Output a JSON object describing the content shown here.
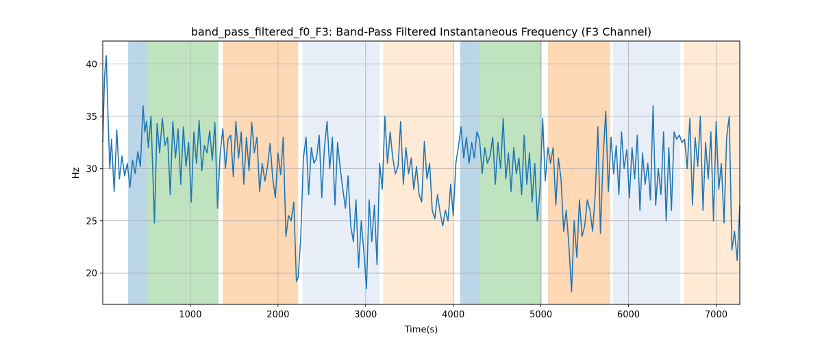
{
  "chart_data": {
    "type": "line",
    "title": "band_pass_filtered_f0_F3: Band-Pass Filtered Instantaneous Frequency (F3 Channel)",
    "xlabel": "Time(s)",
    "ylabel": "Hz",
    "xlim": [
      0,
      7270
    ],
    "ylim": [
      17,
      42.2
    ],
    "xticks": [
      1000,
      2000,
      3000,
      4000,
      5000,
      6000,
      7000
    ],
    "yticks": [
      20,
      25,
      30,
      35,
      40
    ],
    "grid": true,
    "line_color": "#1f77b4",
    "bands": [
      {
        "start": 290,
        "end": 500,
        "color": "#1f77b4",
        "alpha": 0.3
      },
      {
        "start": 500,
        "end": 1320,
        "color": "#2ca02c",
        "alpha": 0.3
      },
      {
        "start": 1370,
        "end": 2230,
        "color": "#ff7f0e",
        "alpha": 0.3
      },
      {
        "start": 2280,
        "end": 3160,
        "color": "#aec7e8",
        "alpha": 0.3
      },
      {
        "start": 3200,
        "end": 4010,
        "color": "#ffbb78",
        "alpha": 0.3
      },
      {
        "start": 4080,
        "end": 4300,
        "color": "#1f77b4",
        "alpha": 0.3
      },
      {
        "start": 4300,
        "end": 5010,
        "color": "#2ca02c",
        "alpha": 0.3
      },
      {
        "start": 5080,
        "end": 5790,
        "color": "#ff7f0e",
        "alpha": 0.3
      },
      {
        "start": 5820,
        "end": 6590,
        "color": "#aec7e8",
        "alpha": 0.3
      },
      {
        "start": 6630,
        "end": 7270,
        "color": "#ffbb78",
        "alpha": 0.3
      }
    ],
    "series": [
      {
        "name": "band_pass_filtered_f0_F3",
        "x": [
          0,
          20,
          40,
          60,
          80,
          100,
          130,
          160,
          190,
          220,
          250,
          280,
          310,
          340,
          370,
          400,
          430,
          460,
          480,
          500,
          520,
          550,
          590,
          620,
          650,
          680,
          710,
          740,
          770,
          800,
          830,
          860,
          890,
          920,
          950,
          980,
          1010,
          1040,
          1070,
          1100,
          1130,
          1160,
          1190,
          1220,
          1250,
          1280,
          1310,
          1340,
          1370,
          1400,
          1430,
          1460,
          1490,
          1520,
          1550,
          1580,
          1610,
          1640,
          1670,
          1700,
          1730,
          1760,
          1790,
          1820,
          1850,
          1880,
          1910,
          1940,
          1970,
          2000,
          2030,
          2060,
          2090,
          2120,
          2150,
          2180,
          2210,
          2230,
          2260,
          2290,
          2320,
          2350,
          2380,
          2410,
          2440,
          2470,
          2500,
          2530,
          2560,
          2590,
          2620,
          2650,
          2680,
          2710,
          2740,
          2770,
          2800,
          2830,
          2860,
          2890,
          2920,
          2950,
          2980,
          3010,
          3040,
          3070,
          3100,
          3130,
          3160,
          3190,
          3220,
          3250,
          3280,
          3310,
          3340,
          3370,
          3400,
          3430,
          3460,
          3490,
          3520,
          3550,
          3580,
          3610,
          3640,
          3670,
          3700,
          3730,
          3760,
          3790,
          3820,
          3850,
          3880,
          3910,
          3940,
          3970,
          4000,
          4030,
          4060,
          4090,
          4120,
          4150,
          4180,
          4210,
          4240,
          4270,
          4300,
          4330,
          4360,
          4390,
          4420,
          4450,
          4480,
          4510,
          4540,
          4570,
          4600,
          4630,
          4660,
          4690,
          4720,
          4750,
          4780,
          4810,
          4840,
          4870,
          4900,
          4930,
          4960,
          4990,
          5020,
          5050,
          5080,
          5110,
          5140,
          5170,
          5200,
          5230,
          5260,
          5290,
          5320,
          5350,
          5380,
          5410,
          5440,
          5470,
          5500,
          5530,
          5560,
          5590,
          5620,
          5650,
          5680,
          5710,
          5740,
          5770,
          5800,
          5830,
          5860,
          5890,
          5920,
          5950,
          5980,
          6010,
          6040,
          6070,
          6100,
          6130,
          6160,
          6190,
          6220,
          6250,
          6280,
          6310,
          6340,
          6370,
          6400,
          6430,
          6460,
          6490,
          6520,
          6550,
          6580,
          6610,
          6640,
          6670,
          6700,
          6730,
          6760,
          6790,
          6820,
          6850,
          6880,
          6910,
          6940,
          6970,
          7000,
          7030,
          7060,
          7090,
          7120,
          7150,
          7180,
          7210,
          7240,
          7270
        ],
        "y": [
          32.5,
          38.8,
          40.8,
          35.0,
          30.0,
          32.8,
          27.8,
          33.7,
          29.0,
          31.2,
          29.3,
          30.5,
          28.2,
          30.8,
          29.5,
          31.6,
          30.2,
          36.0,
          33.5,
          34.5,
          32.0,
          35.0,
          24.8,
          34.3,
          31.5,
          34.8,
          32.2,
          33.0,
          27.5,
          34.5,
          31.0,
          33.8,
          28.5,
          34.0,
          30.2,
          32.5,
          26.8,
          33.5,
          30.5,
          34.6,
          29.8,
          32.2,
          31.5,
          33.6,
          30.8,
          34.4,
          26.2,
          31.5,
          33.8,
          30.0,
          32.8,
          33.2,
          29.2,
          34.5,
          31.0,
          33.5,
          28.5,
          33.0,
          29.8,
          34.4,
          31.5,
          33.0,
          27.8,
          30.5,
          28.8,
          30.2,
          32.4,
          29.0,
          27.2,
          31.5,
          29.4,
          33.0,
          23.5,
          25.5,
          25.0,
          26.8,
          19.2,
          19.6,
          23.5,
          31.0,
          33.0,
          27.5,
          32.0,
          30.5,
          31.0,
          33.2,
          27.2,
          32.0,
          34.5,
          30.0,
          33.0,
          26.5,
          32.5,
          30.0,
          28.0,
          26.2,
          29.3,
          24.5,
          23.0,
          27.0,
          20.5,
          25.0,
          22.0,
          18.5,
          27.0,
          23.0,
          26.5,
          20.8,
          30.5,
          28.0,
          35.0,
          30.5,
          33.5,
          31.0,
          29.5,
          30.2,
          34.5,
          28.5,
          32.0,
          29.5,
          31.0,
          28.0,
          30.2,
          27.5,
          26.8,
          32.6,
          29.0,
          30.5,
          26.0,
          25.2,
          27.5,
          25.8,
          24.5,
          26.0,
          25.0,
          28.5,
          25.5,
          30.5,
          32.2,
          34.0,
          31.0,
          33.0,
          30.5,
          32.5,
          31.0,
          33.5,
          32.8,
          29.5,
          32.0,
          30.5,
          31.2,
          33.0,
          28.5,
          32.5,
          30.0,
          34.8,
          29.0,
          31.5,
          27.8,
          32.0,
          29.5,
          31.0,
          27.5,
          33.2,
          28.5,
          31.5,
          26.8,
          30.5,
          25.0,
          28.0,
          34.8,
          28.8,
          32.0,
          30.5,
          32.0,
          26.5,
          31.0,
          29.0,
          24.0,
          26.0,
          22.5,
          18.2,
          25.0,
          21.5,
          27.0,
          23.5,
          24.5,
          27.0,
          26.0,
          24.0,
          27.5,
          34.0,
          23.8,
          31.0,
          35.5,
          27.8,
          33.0,
          29.5,
          32.2,
          27.5,
          33.5,
          30.0,
          31.8,
          27.2,
          32.0,
          29.0,
          33.2,
          26.0,
          31.5,
          28.5,
          30.5,
          27.0,
          36.0,
          26.5,
          30.0,
          27.5,
          33.5,
          25.0,
          32.0,
          26.0,
          33.5,
          32.8,
          33.2,
          32.5,
          32.8,
          30.0,
          34.8,
          26.5,
          33.0,
          30.2,
          35.0,
          26.0,
          32.5,
          29.0,
          33.5,
          25.0,
          34.5,
          28.0,
          30.5,
          24.8,
          33.0,
          35.0,
          22.2,
          24.0,
          21.2,
          26.5
        ]
      }
    ]
  }
}
